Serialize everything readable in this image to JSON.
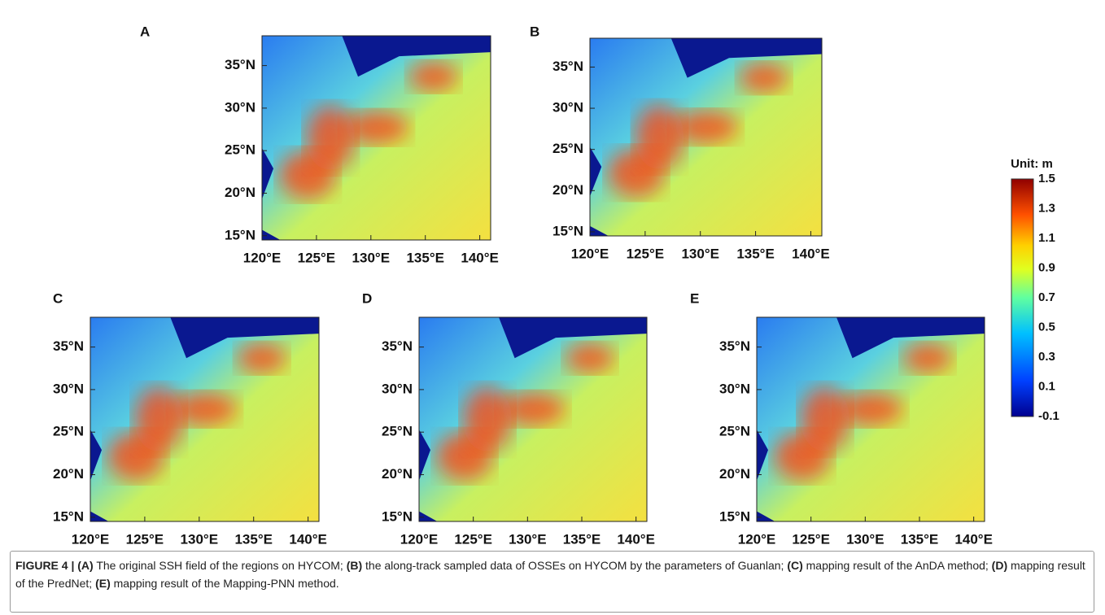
{
  "panels": [
    {
      "label": "A"
    },
    {
      "label": "B"
    },
    {
      "label": "C"
    },
    {
      "label": "D"
    },
    {
      "label": "E"
    }
  ],
  "lat_ticks": [
    "35°N",
    "30°N",
    "25°N",
    "20°N",
    "15°N"
  ],
  "lon_ticks": [
    "120°E",
    "125°E",
    "130°E",
    "135°E",
    "140°E"
  ],
  "colorbar": {
    "title": "Unit: m",
    "ticks": [
      "1.5",
      "1.3",
      "1.1",
      "0.9",
      "0.7",
      "0.5",
      "0.3",
      "0.1",
      "-0.1"
    ]
  },
  "caption": [
    {
      "text": "FIGURE 4 | ",
      "bold": true
    },
    {
      "text": "(A)",
      "bold": true
    },
    {
      "text": " The original SSH field of the regions on HYCOM; ",
      "bold": false
    },
    {
      "text": "(B)",
      "bold": true
    },
    {
      "text": " the along-track sampled data of OSSEs on HYCOM by the parameters of Guanlan; ",
      "bold": false
    },
    {
      "text": "(C)",
      "bold": true
    },
    {
      "text": " mapping result of the AnDA method; ",
      "bold": false
    },
    {
      "text": "(D)",
      "bold": true
    },
    {
      "text": " mapping result of the PredNet; ",
      "bold": false
    },
    {
      "text": "(E)",
      "bold": true
    },
    {
      "text": " mapping result of the Mapping-PNN method.",
      "bold": false
    }
  ]
}
